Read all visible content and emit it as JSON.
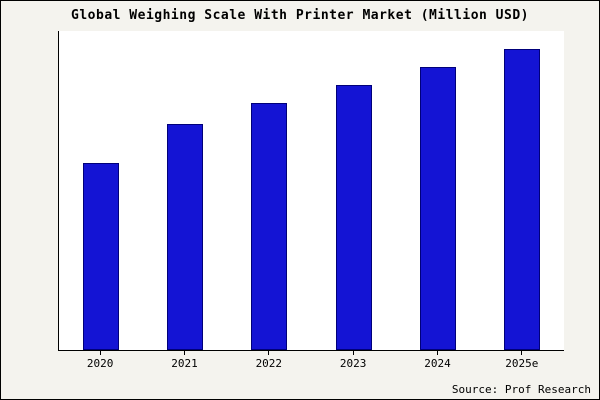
{
  "chart_data": {
    "type": "bar",
    "title": "Global Weighing Scale With Printer Market (Million USD)",
    "categories": [
      "2020",
      "2021",
      "2022",
      "2023",
      "2024",
      "2025e"
    ],
    "values": [
      62,
      75,
      82,
      88,
      94,
      100
    ],
    "xlabel": "",
    "ylabel": "",
    "ylim": [
      0,
      106
    ],
    "grid": false,
    "legend": false,
    "bar_color": "#1414d4",
    "bar_border_color": "#00007a",
    "source": "Source: Prof Research"
  }
}
